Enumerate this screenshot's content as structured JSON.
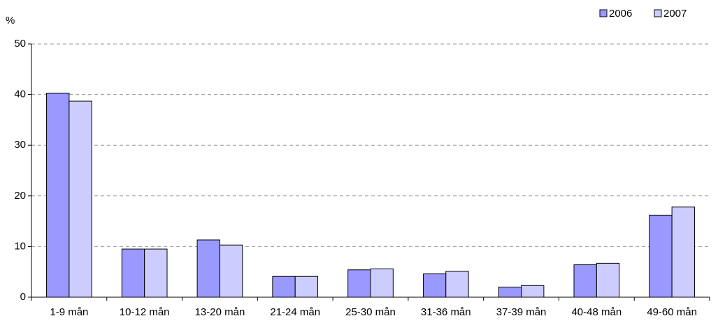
{
  "chart_data": {
    "type": "bar",
    "y_label": "%",
    "categories": [
      "1-9 mån",
      "10-12 mån",
      "13-20 mån",
      "21-24 mån",
      "25-30 mån",
      "31-36 mån",
      "37-39 mån",
      "40-48 mån",
      "49-60 mån"
    ],
    "series": [
      {
        "name": "2006",
        "color": "#9999ff",
        "values": [
          40.3,
          9.5,
          11.3,
          4.1,
          5.4,
          4.6,
          2.0,
          6.4,
          16.2
        ]
      },
      {
        "name": "2007",
        "color": "#ccccff",
        "values": [
          38.7,
          9.5,
          10.3,
          4.1,
          5.6,
          5.1,
          2.3,
          6.7,
          17.8
        ]
      }
    ],
    "ylim": [
      0,
      50
    ],
    "yticks": [
      0,
      10,
      20,
      30,
      40,
      50
    ],
    "grid": true,
    "legend": "top-right"
  }
}
